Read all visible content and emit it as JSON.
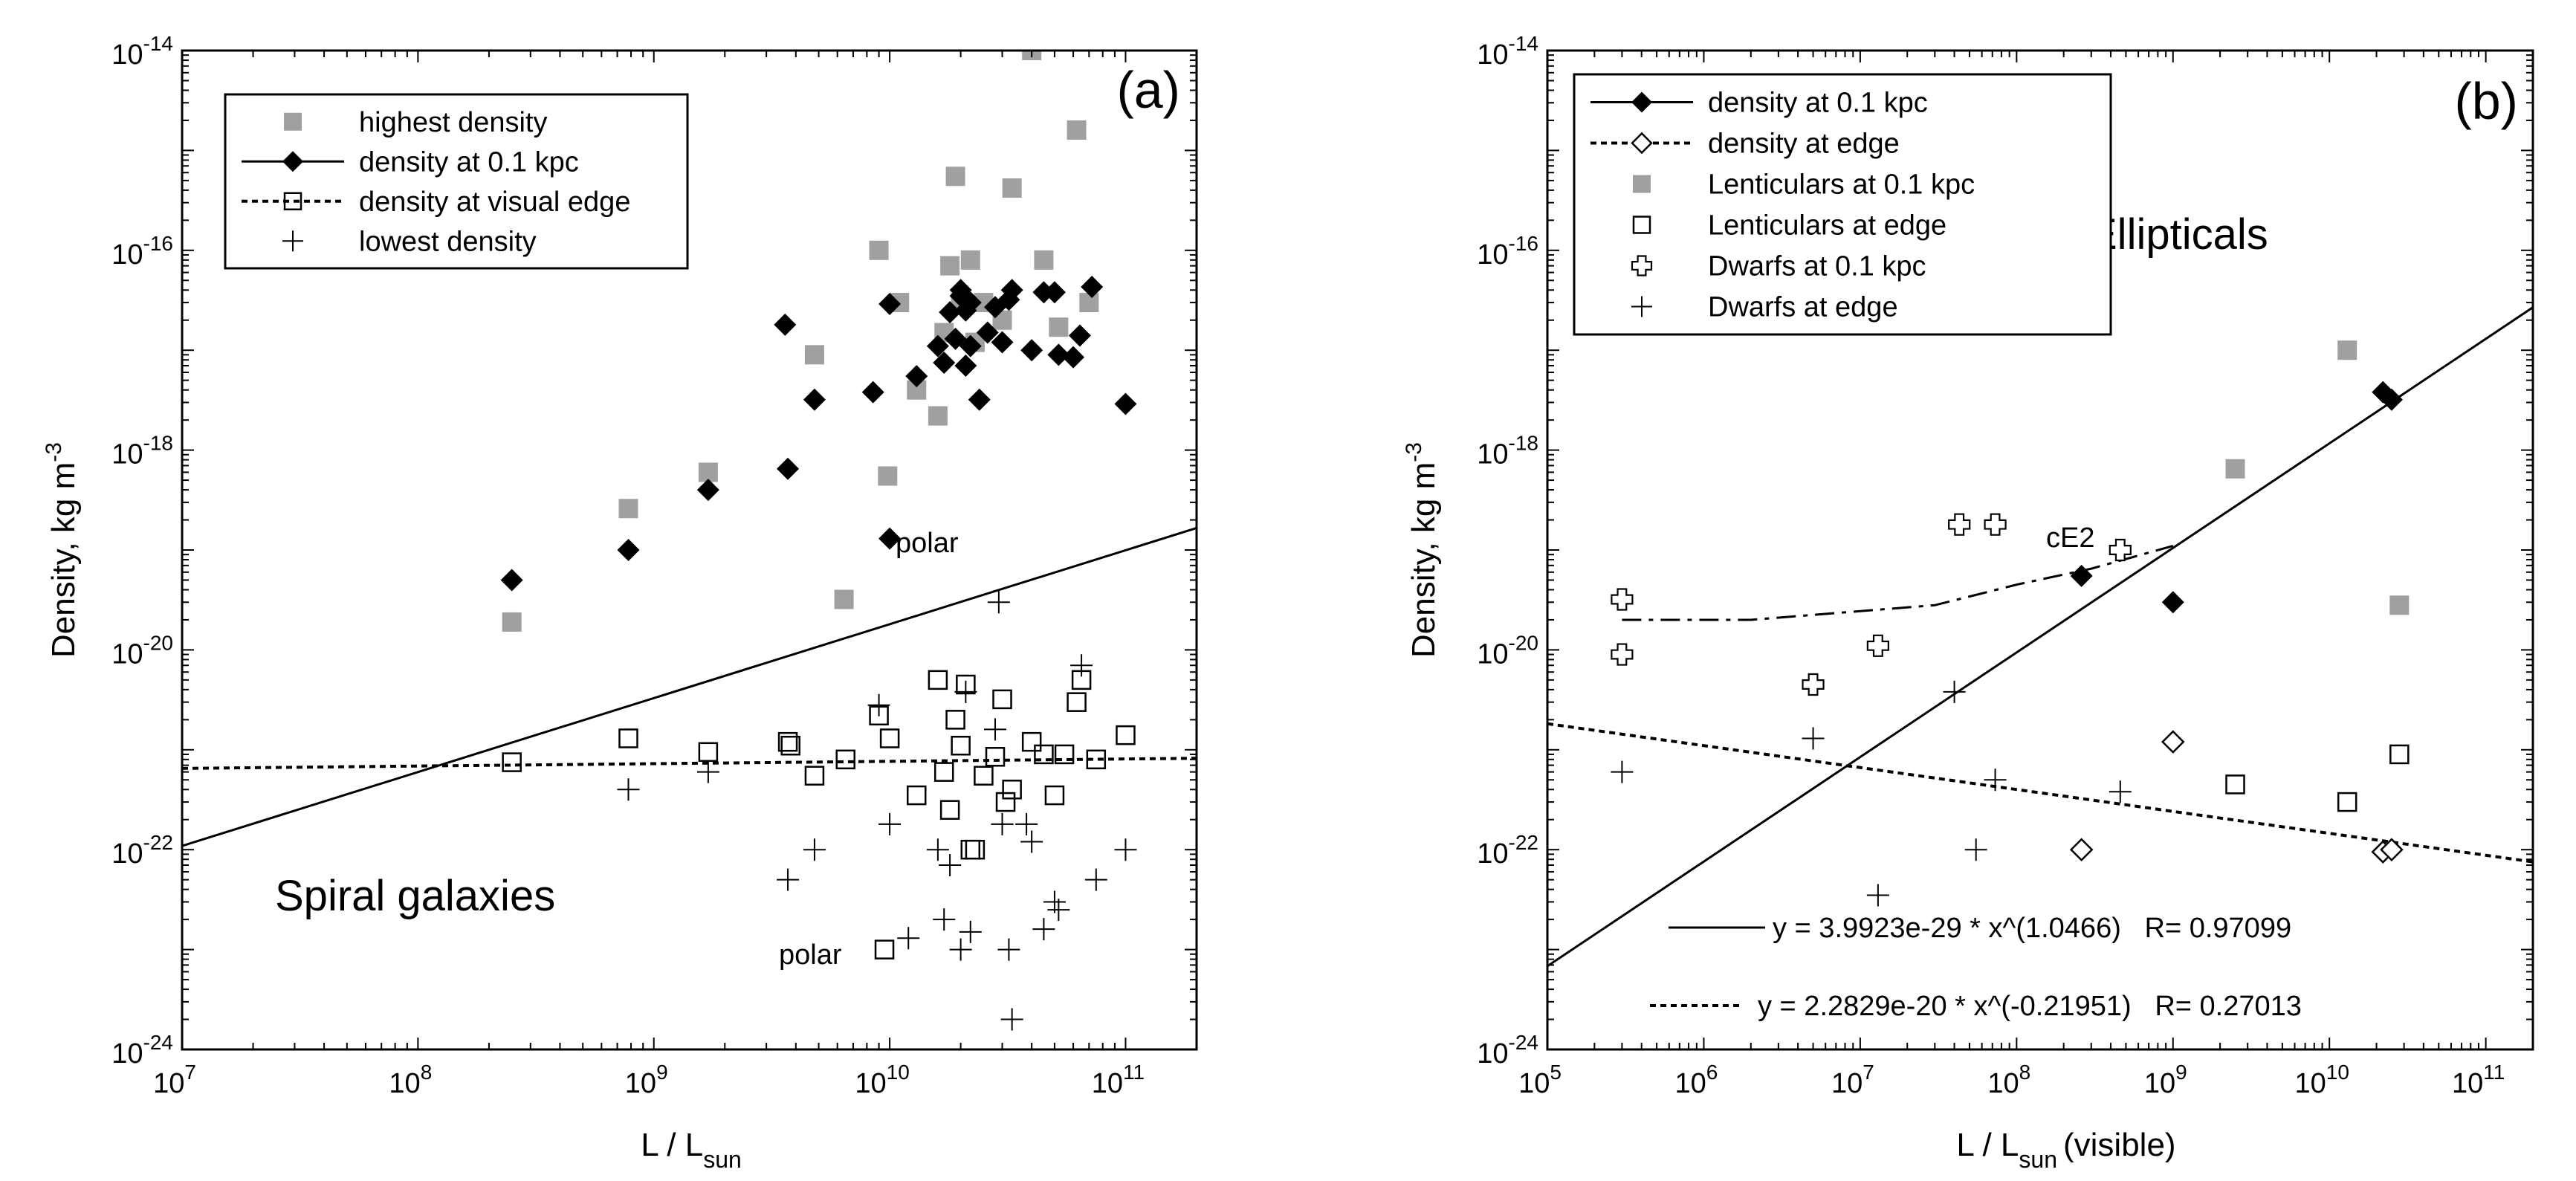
{
  "chart_data": [
    {
      "type": "scatter",
      "panel_label": "(a)",
      "title": "Spiral galaxies",
      "xlabel": "L / L",
      "xlabel_sub": "sun",
      "ylabel": "Density, kg m",
      "ylabel_sup": "-3",
      "xscale": "log",
      "yscale": "log",
      "xlim": [
        10000000.0,
        200000000000.0
      ],
      "ylim": [
        1e-24,
        1e-14
      ],
      "x_ticks": [
        {
          "base": "10",
          "exp": "7"
        },
        {
          "base": "10",
          "exp": "8"
        },
        {
          "base": "10",
          "exp": "9"
        },
        {
          "base": "10",
          "exp": "10"
        },
        {
          "base": "10",
          "exp": "11"
        }
      ],
      "y_ticks": [
        {
          "base": "10",
          "exp": "-24"
        },
        {
          "base": "10",
          "exp": "-22"
        },
        {
          "base": "10",
          "exp": "-20"
        },
        {
          "base": "10",
          "exp": "-18"
        },
        {
          "base": "10",
          "exp": "-16"
        },
        {
          "base": "10",
          "exp": "-14"
        }
      ],
      "legend_position": "top-left",
      "legend": [
        {
          "label": "highest density",
          "color": "#a0a0a0",
          "marker": "filled-square"
        },
        {
          "label": "density at 0.1 kpc",
          "color": "#000000",
          "marker": "filled-diamond",
          "line": "solid"
        },
        {
          "label": "density at visual edge",
          "color": "#000000",
          "marker": "open-square",
          "line": "dotted"
        },
        {
          "label": "lowest density",
          "color": "#000000",
          "marker": "plus"
        }
      ],
      "annotations": [
        {
          "text": "polar",
          "x": 12000000000.0,
          "y": 1.3e-19
        },
        {
          "text": "polar",
          "x": 7000000000.0,
          "y": 1e-23
        }
      ],
      "series": [
        {
          "name": "highest density",
          "marker": "filled-square",
          "color": "#a0a0a0",
          "points": [
            [
              250000000.0,
              1.9e-20
            ],
            [
              780000000.0,
              2.6e-19
            ],
            [
              1700000000.0,
              6e-19
            ],
            [
              4800000000.0,
              9e-18
            ],
            [
              6400000000.0,
              3.2e-20
            ],
            [
              9000000000.0,
              1e-16
            ],
            [
              9800000000.0,
              5.5e-19
            ],
            [
              11000000000.0,
              3e-17
            ],
            [
              13000000000.0,
              4e-18
            ],
            [
              16000000000.0,
              2.2e-18
            ],
            [
              18000000000.0,
              7e-17
            ],
            [
              19000000000.0,
              5.5e-16
            ],
            [
              20000000000.0,
              3e-17
            ],
            [
              22000000000.0,
              8e-17
            ],
            [
              25000000000.0,
              3e-17
            ],
            [
              30000000000.0,
              2e-17
            ],
            [
              33000000000.0,
              4.2e-16
            ],
            [
              40000000000.0,
              1e-14
            ],
            [
              45000000000.0,
              8e-17
            ],
            [
              52000000000.0,
              1.7e-17
            ],
            [
              62000000000.0,
              1.6e-15
            ],
            [
              70000000000.0,
              3e-17
            ],
            [
              17000000000.0,
              1.5e-17
            ],
            [
              23000000000.0,
              1.2e-17
            ]
          ]
        },
        {
          "name": "density at 0.1 kpc",
          "marker": "filled-diamond",
          "color": "#000000",
          "points": [
            [
              250000000.0,
              5e-20
            ],
            [
              780000000.0,
              1e-19
            ],
            [
              1700000000.0,
              4e-19
            ],
            [
              3600000000.0,
              1.8e-17
            ],
            [
              3700000000.0,
              6.5e-19
            ],
            [
              4800000000.0,
              3.2e-18
            ],
            [
              8500000000.0,
              3.8e-18
            ],
            [
              10000000000.0,
              2.9e-17
            ],
            [
              10000000000.0,
              1.3e-19
            ],
            [
              13000000000.0,
              5.5e-18
            ],
            [
              16000000000.0,
              1.1e-17
            ],
            [
              17000000000.0,
              7.5e-18
            ],
            [
              18000000000.0,
              2.4e-17
            ],
            [
              19000000000.0,
              1.3e-17
            ],
            [
              20000000000.0,
              3.5e-17
            ],
            [
              20000000000.0,
              4e-17
            ],
            [
              21000000000.0,
              2.5e-17
            ],
            [
              21000000000.0,
              7e-18
            ],
            [
              22000000000.0,
              1.1e-17
            ],
            [
              22000000000.0,
              3e-17
            ],
            [
              24000000000.0,
              3.2e-18
            ],
            [
              26000000000.0,
              1.5e-17
            ],
            [
              28000000000.0,
              2.7e-17
            ],
            [
              30000000000.0,
              1.2e-17
            ],
            [
              32000000000.0,
              3.2e-17
            ],
            [
              33000000000.0,
              4e-17
            ],
            [
              40000000000.0,
              1e-17
            ],
            [
              45000000000.0,
              3.8e-17
            ],
            [
              50000000000.0,
              3.8e-17
            ],
            [
              52000000000.0,
              9e-18
            ],
            [
              60000000000.0,
              8.5e-18
            ],
            [
              64000000000.0,
              1.4e-17
            ],
            [
              72000000000.0,
              4.3e-17
            ],
            [
              100000000000.0,
              2.9e-18
            ]
          ]
        },
        {
          "name": "density at visual edge",
          "marker": "open-square",
          "color": "#000000",
          "points": [
            [
              250000000.0,
              7.5e-22
            ],
            [
              780000000.0,
              1.3e-21
            ],
            [
              1700000000.0,
              9.5e-22
            ],
            [
              3700000000.0,
              1.2e-21
            ],
            [
              3800000000.0,
              1.1e-21
            ],
            [
              4800000000.0,
              5.5e-22
            ],
            [
              6500000000.0,
              8e-22
            ],
            [
              9000000000.0,
              2.2e-21
            ],
            [
              10000000000.0,
              1.3e-21
            ],
            [
              13000000000.0,
              3.5e-22
            ],
            [
              16000000000.0,
              5e-21
            ],
            [
              17000000000.0,
              6e-22
            ],
            [
              18000000000.0,
              2.5e-22
            ],
            [
              19000000000.0,
              2e-21
            ],
            [
              20000000000.0,
              1.1e-21
            ],
            [
              21000000000.0,
              4.5e-21
            ],
            [
              22000000000.0,
              1e-22
            ],
            [
              23000000000.0,
              1e-22
            ],
            [
              25000000000.0,
              5.5e-22
            ],
            [
              28000000000.0,
              8.5e-22
            ],
            [
              30000000000.0,
              3.2e-21
            ],
            [
              31000000000.0,
              3e-22
            ],
            [
              33000000000.0,
              4e-22
            ],
            [
              40000000000.0,
              1.2e-21
            ],
            [
              45000000000.0,
              9e-22
            ],
            [
              50000000000.0,
              3.5e-22
            ],
            [
              55000000000.0,
              9e-22
            ],
            [
              62000000000.0,
              3e-21
            ],
            [
              65000000000.0,
              5e-21
            ],
            [
              75000000000.0,
              8e-22
            ],
            [
              100000000000.0,
              1.4e-21
            ],
            [
              9500000000.0,
              1e-23
            ]
          ]
        },
        {
          "name": "lowest density",
          "marker": "plus",
          "color": "#000000",
          "points": [
            [
              780000000.0,
              4e-22
            ],
            [
              1700000000.0,
              6e-22
            ],
            [
              3700000000.0,
              5e-23
            ],
            [
              4800000000.0,
              1e-22
            ],
            [
              9000000000.0,
              2.8e-21
            ],
            [
              10000000000.0,
              1.8e-22
            ],
            [
              12000000000.0,
              1.3e-23
            ],
            [
              16000000000.0,
              1e-22
            ],
            [
              17000000000.0,
              2e-23
            ],
            [
              18000000000.0,
              7e-23
            ],
            [
              20000000000.0,
              1e-23
            ],
            [
              21000000000.0,
              3.8e-21
            ],
            [
              22000000000.0,
              1.5e-23
            ],
            [
              28000000000.0,
              1.6e-21
            ],
            [
              29000000000.0,
              3e-20
            ],
            [
              30000000000.0,
              1.8e-22
            ],
            [
              32000000000.0,
              1e-23
            ],
            [
              33000000000.0,
              2e-24
            ],
            [
              40000000000.0,
              1.2e-22
            ],
            [
              45000000000.0,
              1.6e-23
            ],
            [
              50000000000.0,
              3e-23
            ],
            [
              52000000000.0,
              2.5e-23
            ],
            [
              65000000000.0,
              7e-21
            ],
            [
              75000000000.0,
              5e-23
            ],
            [
              100000000000.0,
              1e-22
            ],
            [
              38000000000.0,
              1.8e-22
            ]
          ]
        }
      ],
      "fits": [
        {
          "name": "density at 0.1 kpc",
          "style": "solid",
          "a": 7.2e-28,
          "b": 0.74
        },
        {
          "name": "density at visual edge",
          "style": "dotted",
          "a": 4.45e-22,
          "b": 0.0236
        }
      ]
    },
    {
      "type": "scatter",
      "panel_label": "(b)",
      "title": "Ellipticals",
      "xlabel": "L / L",
      "xlabel_sub": "sun",
      "xlabel_suffix": "(visible)",
      "ylabel": "Density, kg m",
      "ylabel_sup": "-3",
      "xscale": "log",
      "yscale": "log",
      "xlim": [
        100000.0,
        200000000000.0
      ],
      "ylim": [
        1e-24,
        1e-14
      ],
      "x_ticks": [
        {
          "base": "10",
          "exp": "5"
        },
        {
          "base": "10",
          "exp": "6"
        },
        {
          "base": "10",
          "exp": "7"
        },
        {
          "base": "10",
          "exp": "8"
        },
        {
          "base": "10",
          "exp": "9"
        },
        {
          "base": "10",
          "exp": "10"
        },
        {
          "base": "10",
          "exp": "11"
        }
      ],
      "y_ticks": [
        {
          "base": "10",
          "exp": "-24"
        },
        {
          "base": "10",
          "exp": "-22"
        },
        {
          "base": "10",
          "exp": "-20"
        },
        {
          "base": "10",
          "exp": "-18"
        },
        {
          "base": "10",
          "exp": "-16"
        },
        {
          "base": "10",
          "exp": "-14"
        }
      ],
      "legend_position": "top-left",
      "legend": [
        {
          "label": "density at 0.1 kpc",
          "color": "#000000",
          "marker": "filled-diamond",
          "line": "solid"
        },
        {
          "label": "density at edge",
          "color": "#000000",
          "marker": "open-diamond",
          "line": "dotted"
        },
        {
          "label": "Lenticulars at 0.1 kpc",
          "color": "#a0a0a0",
          "marker": "filled-square"
        },
        {
          "label": "Lenticulars at edge",
          "color": "#000000",
          "marker": "open-square"
        },
        {
          "label": "Dwarfs at 0.1 kpc",
          "color": "#000000",
          "marker": "open-cross"
        },
        {
          "label": "Dwarfs at edge",
          "color": "#000000",
          "marker": "plus"
        }
      ],
      "annotations": [
        {
          "text": "cE2",
          "x": 260000000.0,
          "y": 1e-19
        },
        {
          "text": "y = 3.9923e-29 * x^(1.0466)   R= 0.97099",
          "style": "solid"
        },
        {
          "text": "y = 2.2829e-20 * x^(-0.21951)   R= 0.27013",
          "style": "dotted"
        }
      ],
      "series": [
        {
          "name": "density at 0.1 kpc",
          "marker": "filled-diamond",
          "color": "#000000",
          "points": [
            [
              260000000.0,
              5.5e-20
            ],
            [
              1000000000.0,
              3e-20
            ],
            [
              22000000000.0,
              3.8e-18
            ],
            [
              25000000000.0,
              3.2e-18
            ]
          ]
        },
        {
          "name": "density at edge",
          "marker": "open-diamond",
          "color": "#000000",
          "points": [
            [
              260000000.0,
              1e-22
            ],
            [
              1000000000.0,
              1.2e-21
            ],
            [
              22000000000.0,
              9.5e-23
            ],
            [
              25000000000.0,
              1e-22
            ]
          ]
        },
        {
          "name": "Lenticulars at 0.1 kpc",
          "marker": "filled-square",
          "color": "#a0a0a0",
          "points": [
            [
              2500000000.0,
              6.5e-19
            ],
            [
              13000000000.0,
              1e-17
            ],
            [
              28000000000.0,
              2.8e-20
            ]
          ]
        },
        {
          "name": "Lenticulars at edge",
          "marker": "open-square",
          "color": "#000000",
          "points": [
            [
              2500000000.0,
              4.5e-22
            ],
            [
              13000000000.0,
              3e-22
            ],
            [
              28000000000.0,
              9e-22
            ]
          ]
        },
        {
          "name": "Dwarfs at 0.1 kpc",
          "marker": "open-cross",
          "color": "#000000",
          "points": [
            [
              300000.0,
              3.2e-20
            ],
            [
              300000.0,
              9e-21
            ],
            [
              5000000.0,
              4.5e-21
            ],
            [
              13000000.0,
              1.1e-20
            ],
            [
              43000000.0,
              1.8e-19
            ],
            [
              73000000.0,
              1.8e-19
            ],
            [
              460000000.0,
              1e-19
            ]
          ]
        },
        {
          "name": "Dwarfs at edge",
          "marker": "plus",
          "color": "#000000",
          "points": [
            [
              300000.0,
              6e-22
            ],
            [
              5000000.0,
              1.3e-21
            ],
            [
              13000000.0,
              3.5e-23
            ],
            [
              40000000.0,
              3.8e-21
            ],
            [
              55000000.0,
              1e-22
            ],
            [
              73000000.0,
              5e-22
            ],
            [
              460000000.0,
              3.8e-22
            ]
          ]
        }
      ],
      "fits": [
        {
          "name": "density at 0.1 kpc",
          "style": "solid",
          "a": 3.9923e-29,
          "b": 1.0466
        },
        {
          "name": "density at edge",
          "style": "dotted",
          "a": 2.2829e-20,
          "b": -0.21951
        }
      ],
      "dwarf_trend": {
        "style": "dash-dot",
        "points": [
          [
            300000.0,
            2e-20
          ],
          [
            2000000.0,
            2e-20
          ],
          [
            30000000.0,
            2.8e-20
          ],
          [
            100000000.0,
            4.5e-20
          ],
          [
            300000000.0,
            6.5e-20
          ],
          [
            1000000000.0,
            1.1e-19
          ]
        ]
      }
    }
  ]
}
